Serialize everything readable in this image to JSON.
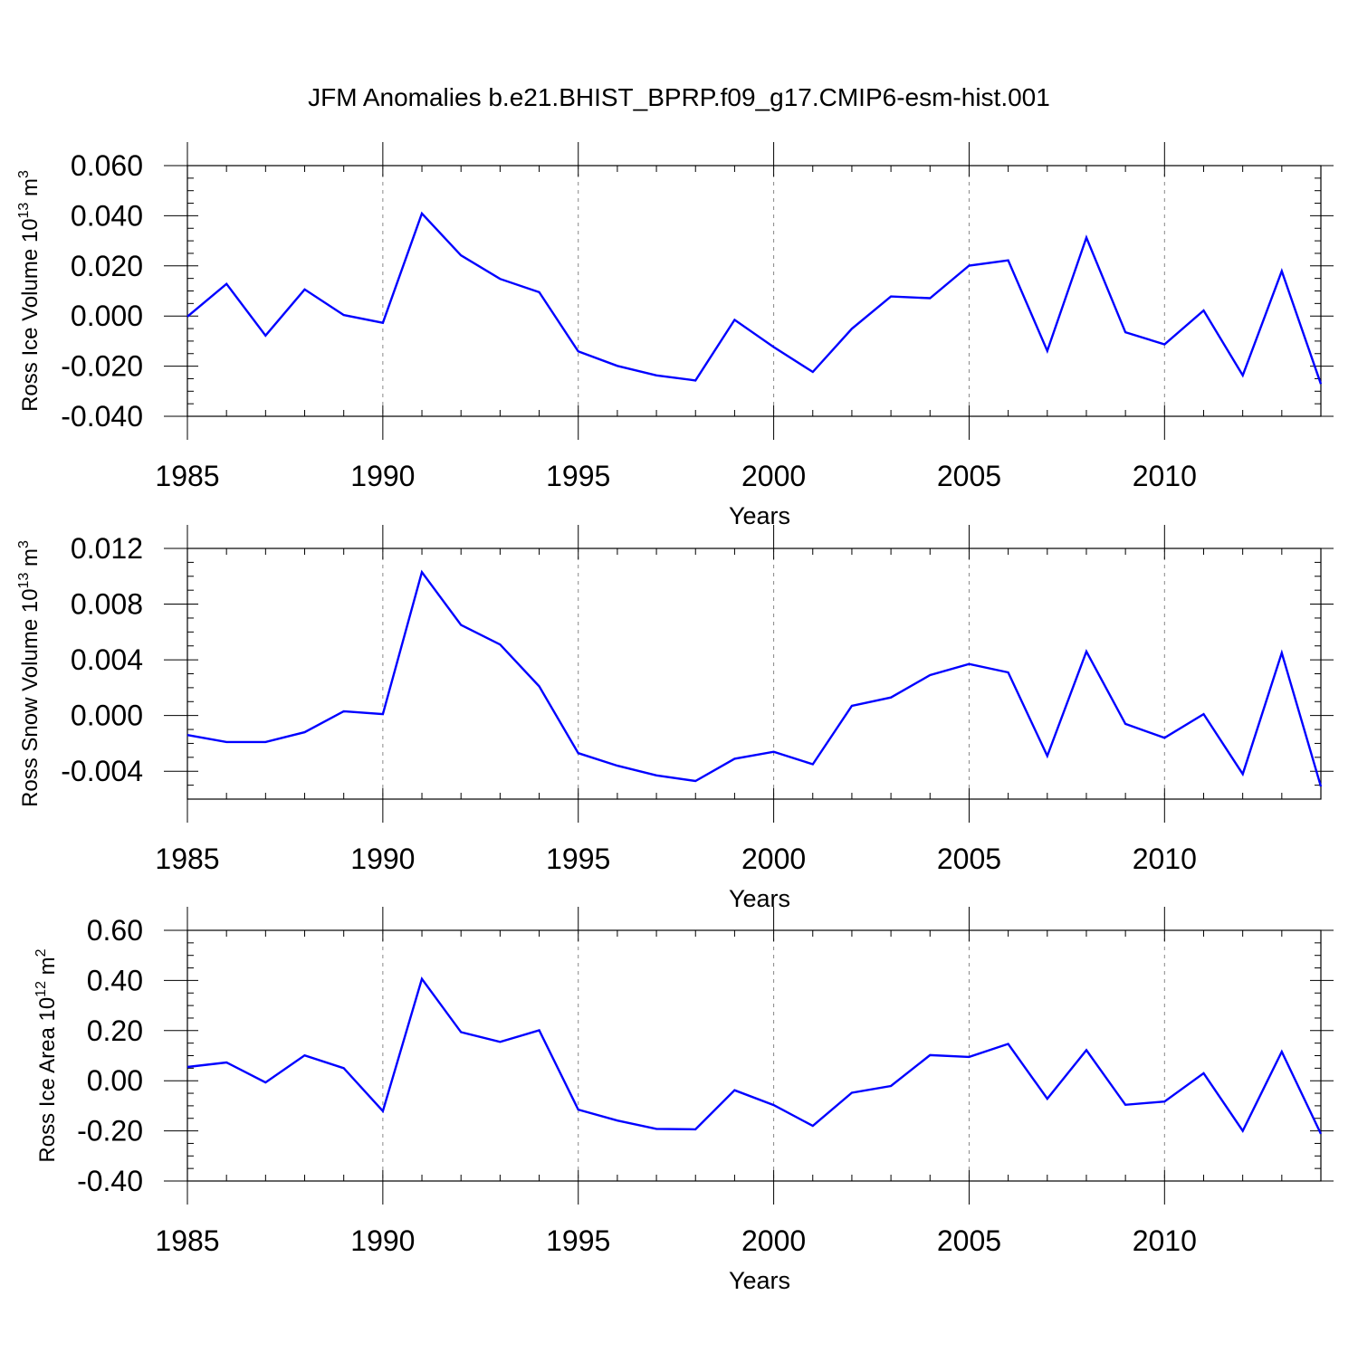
{
  "figure": {
    "title": "JFM Anomalies b.e21.BHIST_BPRP.f09_g17.CMIP6-esm-hist.001"
  },
  "chart_data": [
    {
      "type": "line",
      "title": "",
      "xlabel": "Years",
      "ylabel_base": "Ross Ice Volume 10",
      "ylabel_exp": "13",
      "ylabel_unit": " m",
      "ylabel_unit_exp": "3",
      "xlim": [
        1985,
        2014
      ],
      "ylim": [
        -0.04,
        0.06
      ],
      "xticks": [
        1985,
        1990,
        1995,
        2000,
        2005,
        2010
      ],
      "xtick_labels": [
        "1985",
        "1990",
        "1995",
        "2000",
        "2005",
        "2010"
      ],
      "yticks": [
        -0.04,
        -0.02,
        0.0,
        0.02,
        0.04,
        0.06
      ],
      "ytick_labels": [
        "-0.040",
        "-0.020",
        "0.000",
        "0.020",
        "0.040",
        "0.060"
      ],
      "y_minor_step": 0.005,
      "line_color": "#0000ff",
      "grid": "dashed vertical at labeled years",
      "series": [
        {
          "name": "Ross Ice Volume",
          "x": [
            1985,
            1986,
            1987,
            1988,
            1989,
            1990,
            1991,
            1992,
            1993,
            1994,
            1995,
            1996,
            1997,
            1998,
            1999,
            2000,
            2001,
            2002,
            2003,
            2004,
            2005,
            2006,
            2007,
            2008,
            2009,
            2010,
            2011,
            2012,
            2013,
            2014
          ],
          "values": [
            -0.0002,
            0.0128,
            -0.0078,
            0.0106,
            0.0004,
            -0.0027,
            0.0409,
            0.0242,
            0.0148,
            0.0095,
            -0.0141,
            -0.0199,
            -0.0237,
            -0.0257,
            -0.0015,
            -0.0124,
            -0.0223,
            -0.0051,
            0.0078,
            0.0071,
            0.0201,
            0.0222,
            -0.0139,
            0.0313,
            -0.0065,
            -0.0113,
            0.0022,
            -0.0237,
            0.0179,
            -0.0271
          ]
        }
      ]
    },
    {
      "type": "line",
      "title": "",
      "xlabel": "Years",
      "ylabel_base": "Ross Snow Volume 10",
      "ylabel_exp": "13",
      "ylabel_unit": " m",
      "ylabel_unit_exp": "3",
      "xlim": [
        1985,
        2014
      ],
      "ylim": [
        -0.006,
        0.012
      ],
      "xticks": [
        1985,
        1990,
        1995,
        2000,
        2005,
        2010
      ],
      "xtick_labels": [
        "1985",
        "1990",
        "1995",
        "2000",
        "2005",
        "2010"
      ],
      "yticks": [
        -0.004,
        0.0,
        0.004,
        0.008,
        0.012
      ],
      "ytick_labels": [
        "-0.004",
        "0.000",
        "0.004",
        "0.008",
        "0.012"
      ],
      "y_minor_step": 0.001,
      "line_color": "#0000ff",
      "grid": "dashed vertical at labeled years",
      "series": [
        {
          "name": "Ross Snow Volume",
          "x": [
            1985,
            1986,
            1987,
            1988,
            1989,
            1990,
            1991,
            1992,
            1993,
            1994,
            1995,
            1996,
            1997,
            1998,
            1999,
            2000,
            2001,
            2002,
            2003,
            2004,
            2005,
            2006,
            2007,
            2008,
            2009,
            2010,
            2011,
            2012,
            2013,
            2014
          ],
          "values": [
            -0.0014,
            -0.0019,
            -0.0019,
            -0.0012,
            0.0003,
            0.0001,
            0.0103,
            0.0065,
            0.0051,
            0.0021,
            -0.0027,
            -0.0036,
            -0.0043,
            -0.0047,
            -0.0031,
            -0.0026,
            -0.0035,
            0.0007,
            0.0013,
            0.0029,
            0.0037,
            0.0031,
            -0.0029,
            0.0046,
            -0.0006,
            -0.0016,
            0.0001,
            -0.0042,
            0.0045,
            -0.0051
          ]
        }
      ]
    },
    {
      "type": "line",
      "title": "",
      "xlabel": "Years",
      "ylabel_base": "Ross Ice Area 10",
      "ylabel_exp": "12",
      "ylabel_unit": " m",
      "ylabel_unit_exp": "2",
      "xlim": [
        1985,
        2014
      ],
      "ylim": [
        -0.4,
        0.6
      ],
      "xticks": [
        1985,
        1990,
        1995,
        2000,
        2005,
        2010
      ],
      "xtick_labels": [
        "1985",
        "1990",
        "1995",
        "2000",
        "2005",
        "2010"
      ],
      "yticks": [
        -0.4,
        -0.2,
        0.0,
        0.2,
        0.4,
        0.6
      ],
      "ytick_labels": [
        "-0.40",
        "-0.20",
        "0.00",
        "0.20",
        "0.40",
        "0.60"
      ],
      "y_minor_step": 0.05,
      "line_color": "#0000ff",
      "grid": "dashed vertical at labeled years",
      "series": [
        {
          "name": "Ross Ice Area",
          "x": [
            1985,
            1986,
            1987,
            1988,
            1989,
            1990,
            1991,
            1992,
            1993,
            1994,
            1995,
            1996,
            1997,
            1998,
            1999,
            2000,
            2001,
            2002,
            2003,
            2004,
            2005,
            2006,
            2007,
            2008,
            2009,
            2010,
            2011,
            2012,
            2013,
            2014
          ],
          "values": [
            0.055,
            0.073,
            -0.007,
            0.101,
            0.05,
            -0.121,
            0.406,
            0.194,
            0.155,
            0.201,
            -0.115,
            -0.159,
            -0.192,
            -0.194,
            -0.038,
            -0.097,
            -0.18,
            -0.048,
            -0.021,
            0.102,
            0.095,
            0.147,
            -0.072,
            0.122,
            -0.096,
            -0.083,
            0.03,
            -0.2,
            0.116,
            -0.212
          ]
        }
      ]
    }
  ]
}
